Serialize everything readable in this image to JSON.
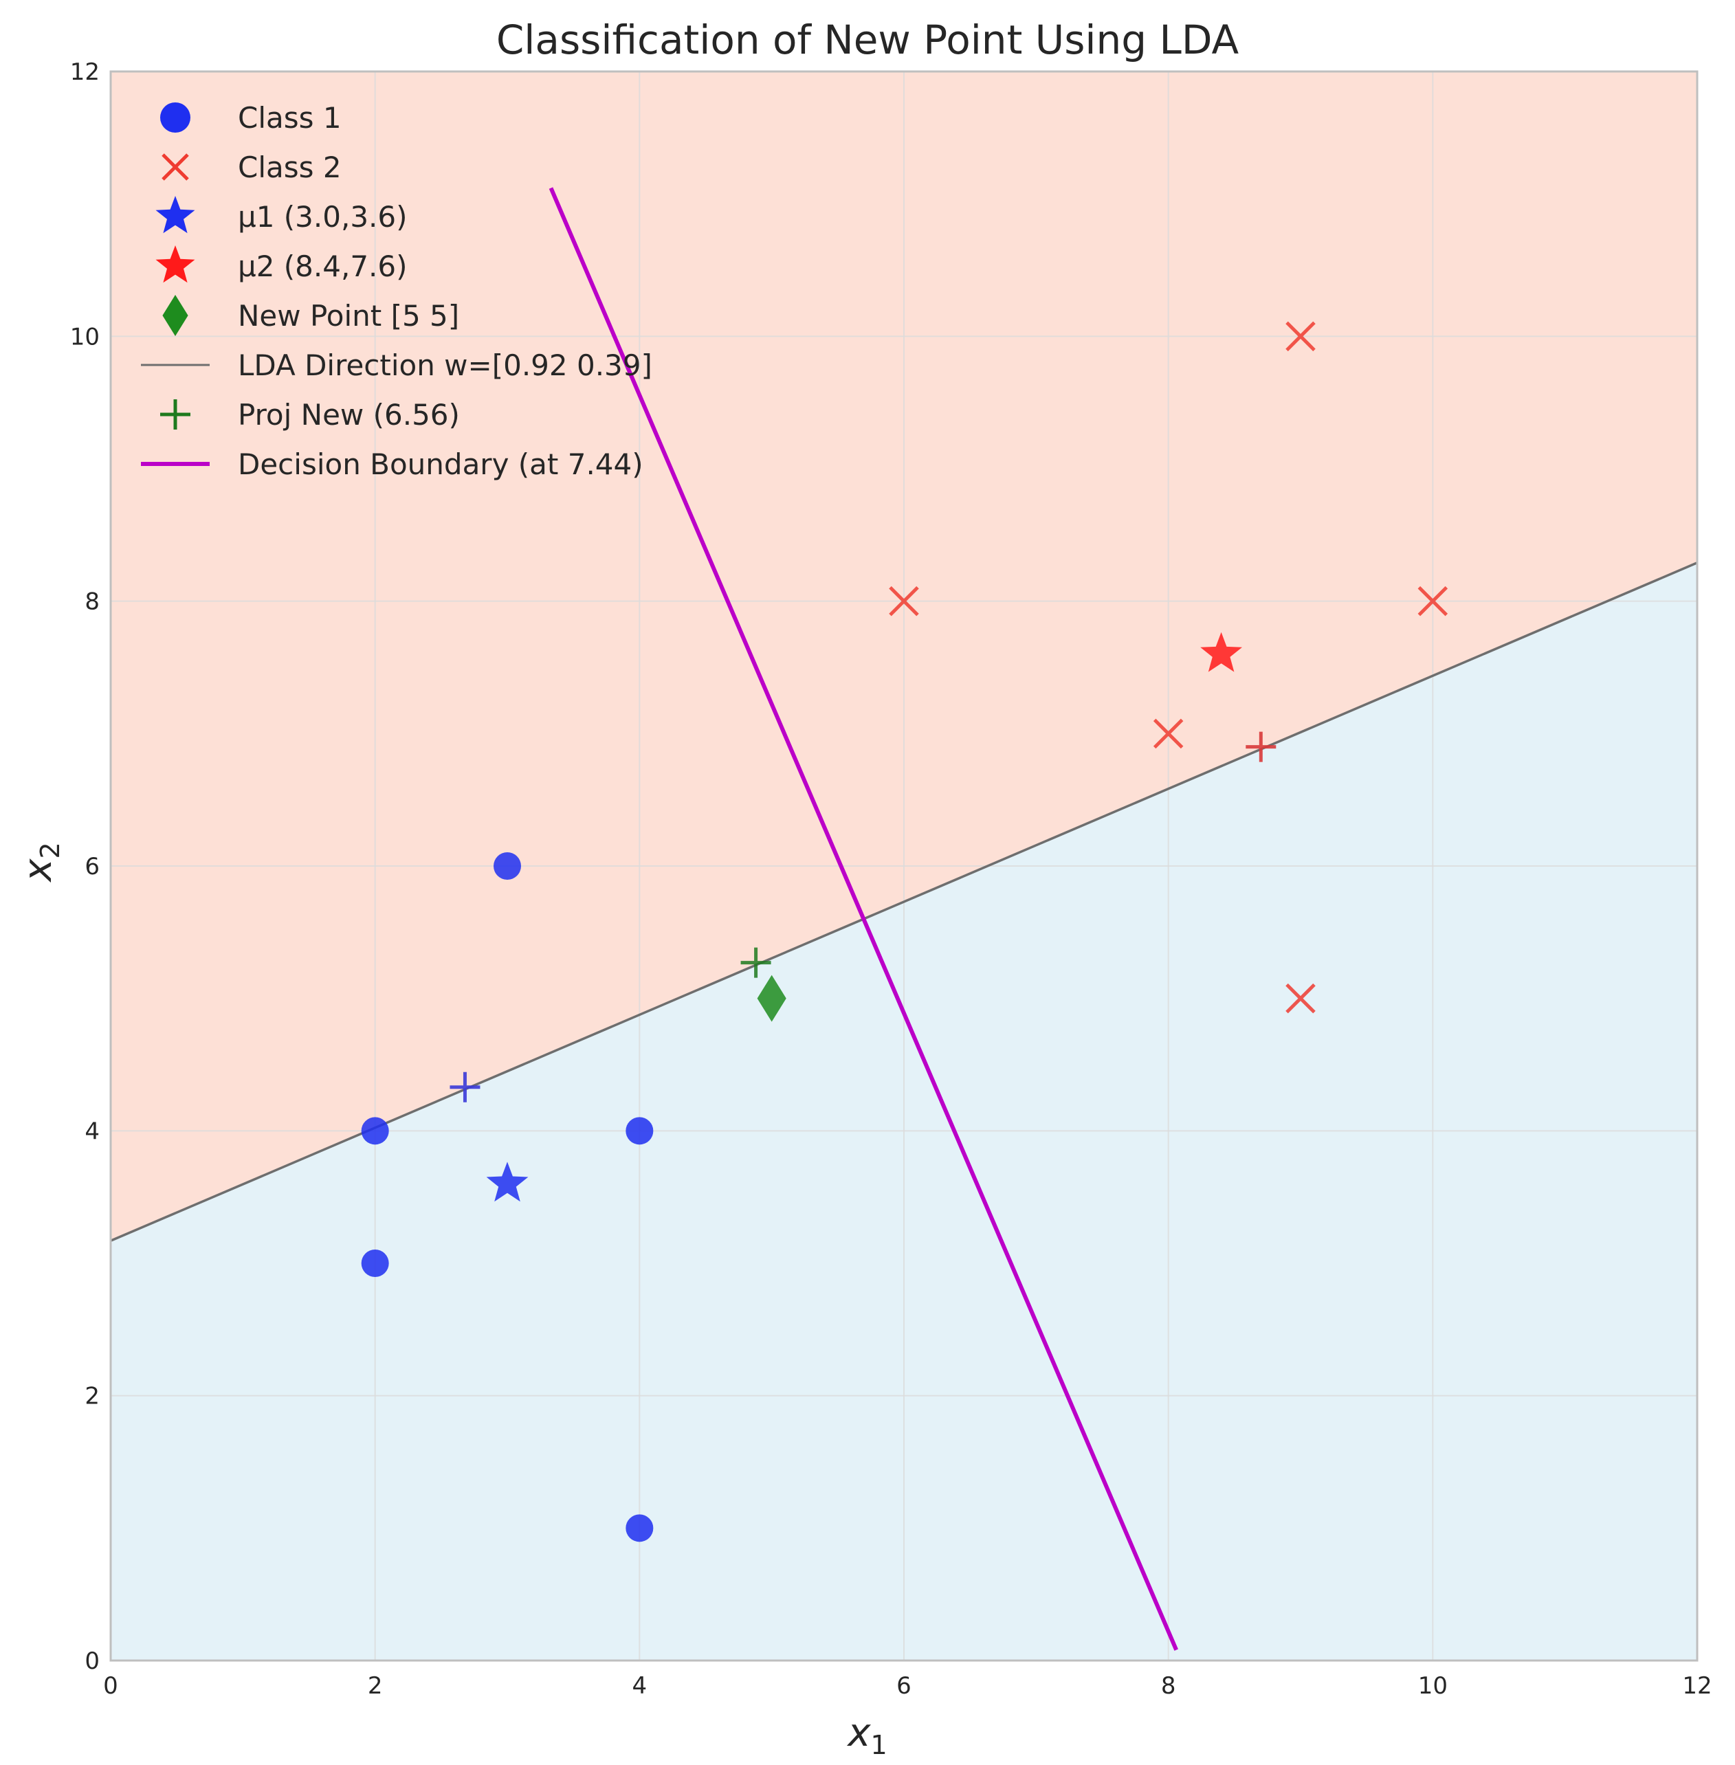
{
  "chart_data": {
    "type": "scatter",
    "title": "Classification of New Point Using LDA",
    "xlabel": "x",
    "xlabel_sub": "1",
    "ylabel": "x",
    "ylabel_sub": "2",
    "xlim": [
      0,
      12
    ],
    "ylim": [
      0,
      12
    ],
    "xticks": [
      0,
      2,
      4,
      6,
      8,
      10,
      12
    ],
    "yticks": [
      0,
      2,
      4,
      6,
      8,
      10,
      12
    ],
    "grid": true,
    "legend_position": "top-left",
    "regions": {
      "above_lda_line_color": "#fde0d6",
      "below_lda_line_color": "#e4f2f8"
    },
    "series": [
      {
        "name": "Class 1",
        "marker": "circle",
        "color": "#1f2ff0",
        "points": [
          [
            2,
            4
          ],
          [
            2,
            3
          ],
          [
            4,
            4
          ],
          [
            4,
            1
          ],
          [
            3,
            6
          ]
        ]
      },
      {
        "name": "Class 2",
        "marker": "x",
        "color": "#ef3b30",
        "points": [
          [
            9,
            10
          ],
          [
            6,
            8
          ],
          [
            10,
            8
          ],
          [
            8,
            7
          ],
          [
            9,
            5
          ]
        ]
      },
      {
        "name": "μ1 (3.0,3.6)",
        "marker": "star",
        "color": "#1f2ff0",
        "points": [
          [
            3.0,
            3.6
          ]
        ]
      },
      {
        "name": "μ2 (8.4,7.6)",
        "marker": "star",
        "color": "#ff1a1a",
        "points": [
          [
            8.4,
            7.6
          ]
        ]
      },
      {
        "name": "New Point [5 5]",
        "marker": "diamond",
        "color": "#1e8c1e",
        "points": [
          [
            5,
            5
          ]
        ]
      },
      {
        "name": "LDA Direction w=[0.92 0.39]",
        "marker": "line",
        "color": "#6e6e6e",
        "line": [
          [
            0,
            3.17
          ],
          [
            12,
            8.29
          ]
        ]
      },
      {
        "name": "Proj New (6.56)",
        "marker": "plus",
        "color": "#1e7a1e",
        "points": [
          [
            4.88,
            5.27
          ]
        ]
      },
      {
        "name": "Decision Boundary (at 7.44)",
        "marker": "line",
        "color": "#bb00c8",
        "line": [
          [
            3.33,
            11.12
          ],
          [
            8.06,
            0.08
          ]
        ]
      }
    ],
    "unlabeled_marks": [
      {
        "marker": "plus",
        "color": "#3a3ad8",
        "point": [
          2.68,
          4.33
        ]
      },
      {
        "marker": "plus",
        "color": "#d83a3a",
        "point": [
          8.7,
          6.9
        ]
      }
    ]
  }
}
